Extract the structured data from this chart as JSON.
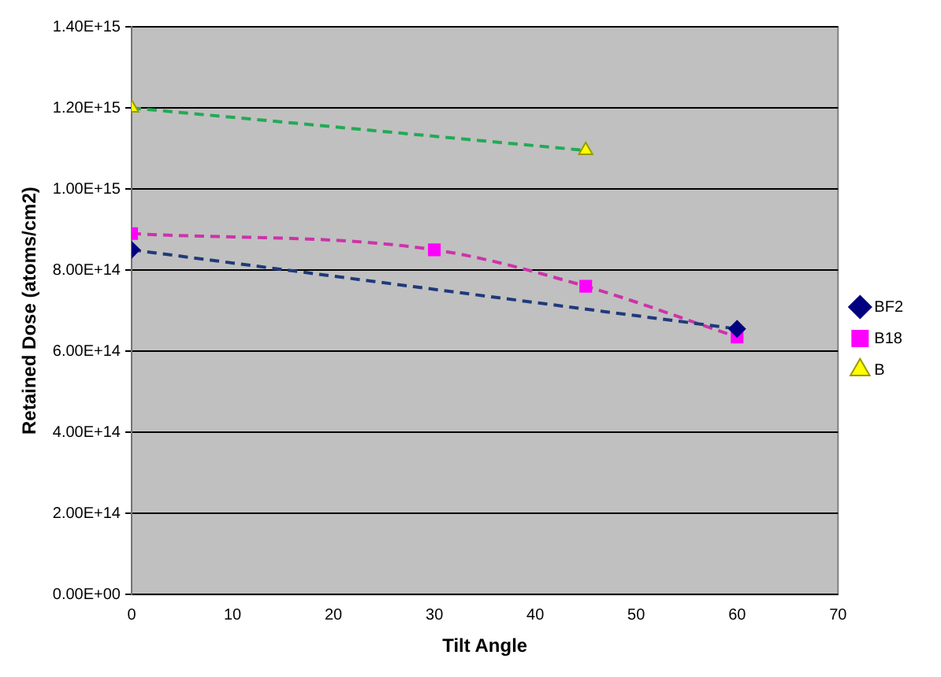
{
  "chart_data": {
    "type": "scatter",
    "xlabel": "Tilt Angle",
    "ylabel": "Retained Dose (atoms/cm2)",
    "xlim": [
      0,
      70
    ],
    "xticks": [
      0,
      10,
      20,
      30,
      40,
      50,
      60,
      70
    ],
    "ylim": [
      0,
      1400000000000000.0
    ],
    "yticks": [
      {
        "value": 0,
        "label": "0.00E+00"
      },
      {
        "value": 200000000000000.0,
        "label": "2.00E+14"
      },
      {
        "value": 400000000000000.0,
        "label": "4.00E+14"
      },
      {
        "value": 600000000000000.0,
        "label": "6.00E+14"
      },
      {
        "value": 800000000000000.0,
        "label": "8.00E+14"
      },
      {
        "value": 1000000000000000.0,
        "label": "1.00E+15"
      },
      {
        "value": 1200000000000000.0,
        "label": "1.20E+15"
      },
      {
        "value": 1400000000000000.0,
        "label": "1.40E+15"
      }
    ],
    "grid": "y",
    "legend": "right",
    "series": [
      {
        "type": "line",
        "color": "#1f3a7a",
        "marker": "none",
        "line_style": "dashed",
        "x": [
          0,
          60
        ],
        "values": [
          850000000000000.0,
          655000000000000.0
        ]
      },
      {
        "type": "line",
        "color": "#cc33aa",
        "marker": "none",
        "line_style": "dashed",
        "x": [
          0,
          30,
          45,
          60
        ],
        "values": [
          890000000000000.0,
          850000000000000.0,
          760000000000000.0,
          635000000000000.0
        ]
      },
      {
        "type": "line",
        "color": "#22aa55",
        "marker": "none",
        "line_style": "dashed",
        "x": [
          0,
          45
        ],
        "values": [
          1200000000000000.0,
          1095000000000000.0
        ]
      },
      {
        "name": "BF2",
        "color": "#000080",
        "marker": "diamond",
        "x": [
          0,
          60
        ],
        "values": [
          850000000000000.0,
          655000000000000.0
        ]
      },
      {
        "name": "B18",
        "color": "#ff00ff",
        "marker": "square",
        "x": [
          0,
          30,
          45,
          60
        ],
        "values": [
          890000000000000.0,
          850000000000000.0,
          760000000000000.0,
          635000000000000.0
        ]
      },
      {
        "name": "B",
        "color": "#ffff00",
        "marker": "triangle",
        "x": [
          0,
          45
        ],
        "values": [
          1200000000000000.0,
          1095000000000000.0
        ]
      }
    ]
  }
}
